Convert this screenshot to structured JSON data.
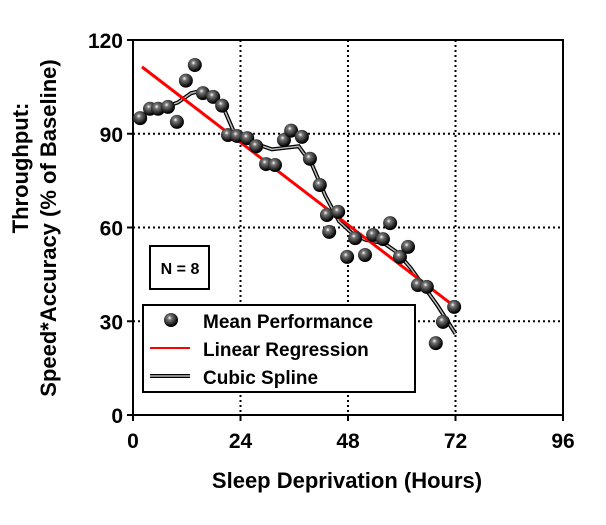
{
  "chart_data": {
    "type": "scatter",
    "xlabel": "Sleep Deprivation (Hours)",
    "ylabel_line1": "Throughput:",
    "ylabel_line2": "Speed*Accuracy (% of Baseline)",
    "xlim": [
      0,
      96
    ],
    "ylim": [
      0,
      120
    ],
    "xticks": [
      "0",
      "24",
      "48",
      "72",
      "96"
    ],
    "yticks": [
      "0",
      "30",
      "60",
      "90",
      "120"
    ],
    "grid": true,
    "annotation": "N = 8",
    "legend_position": "bottom-left",
    "colors": {
      "points": "#000000",
      "regression": "#ff0000",
      "spline": "#555555"
    },
    "series": [
      {
        "name": "Mean Performance",
        "type": "scatter",
        "points": [
          [
            1.6,
            95
          ],
          [
            3.8,
            98
          ],
          [
            5.6,
            98
          ],
          [
            7.8,
            98.6
          ],
          [
            9.8,
            93.8
          ],
          [
            11.8,
            107
          ],
          [
            13.8,
            112
          ],
          [
            15.6,
            103
          ],
          [
            17.9,
            101.8
          ],
          [
            19.9,
            99
          ],
          [
            21.2,
            89.6
          ],
          [
            23.2,
            89.3
          ],
          [
            25.5,
            88.6
          ],
          [
            27.5,
            86
          ],
          [
            29.7,
            80.3
          ],
          [
            31.7,
            80
          ],
          [
            33.7,
            88
          ],
          [
            35.3,
            91
          ],
          [
            37.7,
            89
          ],
          [
            39.5,
            82
          ],
          [
            41.7,
            73.6
          ],
          [
            43.3,
            64
          ],
          [
            43.8,
            58.6
          ],
          [
            45.8,
            65
          ],
          [
            47.8,
            50.6
          ],
          [
            49.6,
            56.6
          ],
          [
            51.8,
            51.2
          ],
          [
            53.6,
            57.6
          ],
          [
            55.8,
            56.3
          ],
          [
            57.4,
            61.4
          ],
          [
            59.6,
            50.6
          ],
          [
            61.4,
            53.8
          ],
          [
            63.6,
            41.6
          ],
          [
            65.6,
            41
          ],
          [
            67.6,
            23
          ],
          [
            69.2,
            29.8
          ],
          [
            71.7,
            34.6
          ]
        ]
      },
      {
        "name": "Linear Regression",
        "type": "line",
        "points": [
          [
            2,
            111.4
          ],
          [
            72,
            34.5
          ]
        ]
      },
      {
        "name": "Cubic Spline",
        "type": "line",
        "points": [
          [
            2,
            96
          ],
          [
            6,
            98
          ],
          [
            10,
            100
          ],
          [
            13,
            103
          ],
          [
            16,
            104
          ],
          [
            20,
            99
          ],
          [
            23,
            89
          ],
          [
            27,
            87
          ],
          [
            31,
            85
          ],
          [
            34,
            85.5
          ],
          [
            37,
            86
          ],
          [
            40,
            80
          ],
          [
            43,
            70
          ],
          [
            46,
            62
          ],
          [
            49,
            58
          ],
          [
            52,
            56
          ],
          [
            56,
            55
          ],
          [
            59,
            52
          ],
          [
            62,
            47
          ],
          [
            65,
            41
          ],
          [
            68,
            35
          ],
          [
            72,
            26
          ]
        ]
      }
    ]
  }
}
